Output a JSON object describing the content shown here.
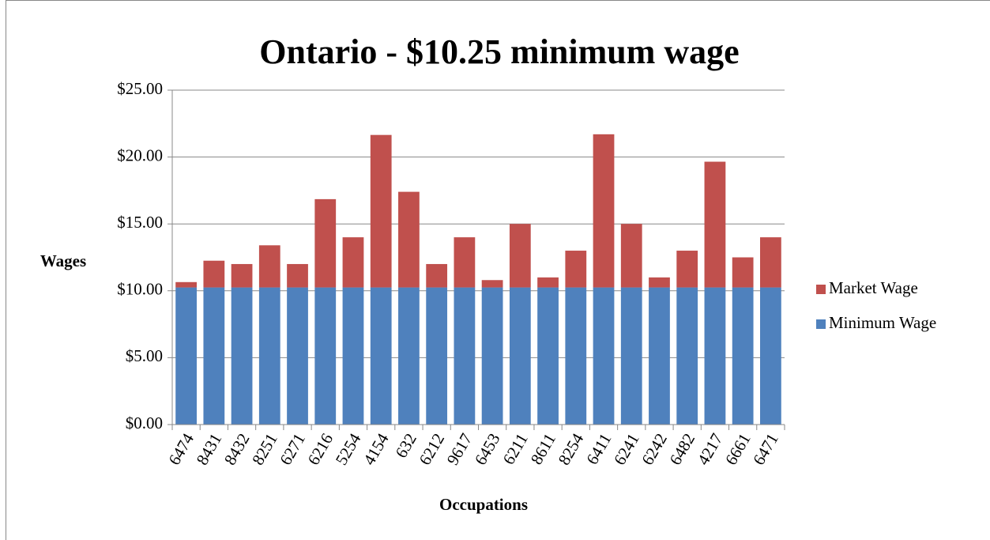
{
  "chart_data": {
    "type": "stacked_bar",
    "title": "Ontario - $10.25 minimum wage",
    "x_label": "Occupations",
    "y_label": "Wages",
    "categories": [
      "6474",
      "8431",
      "8432",
      "8251",
      "6271",
      "6216",
      "5254",
      "4154",
      "632",
      "6212",
      "9617",
      "6453",
      "6211",
      "8611",
      "8254",
      "6411",
      "6241",
      "6242",
      "6482",
      "4217",
      "6661",
      "6471"
    ],
    "series": [
      {
        "name": "Minimum Wage",
        "color": "#4f81bd",
        "values": [
          10.25,
          10.25,
          10.25,
          10.25,
          10.25,
          10.25,
          10.25,
          10.25,
          10.25,
          10.25,
          10.25,
          10.25,
          10.25,
          10.25,
          10.25,
          10.25,
          10.25,
          10.25,
          10.25,
          10.25,
          10.25,
          10.25
        ]
      },
      {
        "name": "Market Wage",
        "color": "#c0504d",
        "values": [
          0.4,
          2.0,
          1.75,
          3.15,
          1.75,
          6.6,
          3.75,
          11.4,
          7.15,
          1.75,
          3.75,
          0.55,
          4.75,
          0.75,
          2.75,
          11.45,
          4.75,
          0.75,
          2.75,
          9.4,
          2.25,
          3.75
        ]
      }
    ],
    "ylim": [
      0,
      25
    ],
    "yticks": [
      {
        "value": 0,
        "label": "$0.00"
      },
      {
        "value": 5,
        "label": "$5.00"
      },
      {
        "value": 10,
        "label": "$10.00"
      },
      {
        "value": 15,
        "label": "$15.00"
      },
      {
        "value": 20,
        "label": "$20.00"
      },
      {
        "value": 25,
        "label": "$25.00"
      }
    ],
    "grid": true,
    "legend": "right"
  }
}
